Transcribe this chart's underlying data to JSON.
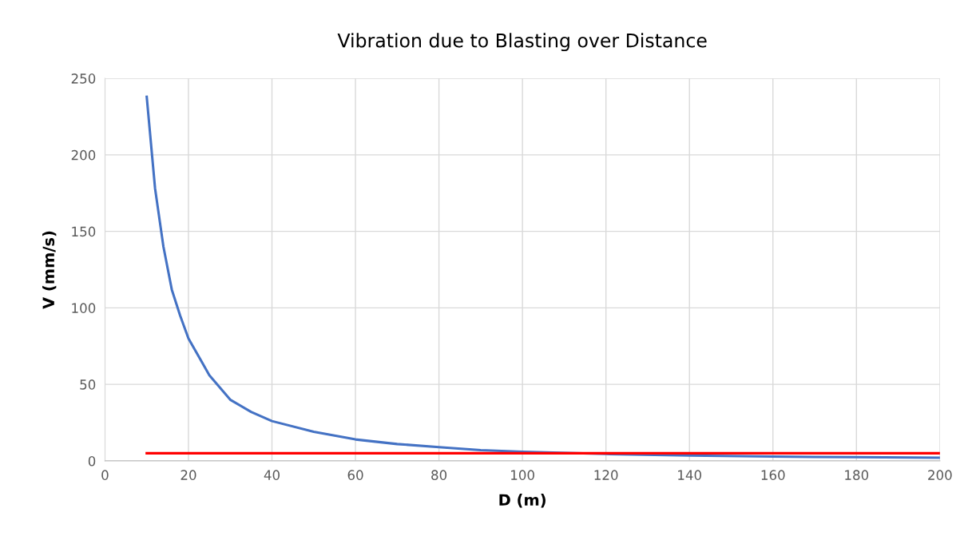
{
  "chart_data": {
    "type": "line",
    "title": "Vibration due to Blasting over Distance",
    "xlabel": "D (m)",
    "ylabel": "V (mm/s)",
    "series": [
      {
        "color": "#4472c4",
        "x": [
          10,
          12,
          14,
          16,
          18,
          20,
          25,
          30,
          35,
          40,
          50,
          60,
          70,
          80,
          90,
          100,
          120,
          140,
          160,
          180,
          200
        ],
        "values": [
          238,
          178,
          140,
          112,
          95,
          80,
          56,
          40,
          32,
          26,
          19,
          14,
          11,
          9,
          7,
          6,
          4.5,
          3.5,
          2.8,
          2.4,
          2
        ]
      },
      {
        "color": "#ff0000",
        "x": [
          10,
          200
        ],
        "values": [
          5,
          5
        ]
      }
    ],
    "xlim": [
      0,
      200
    ],
    "xticks": [
      0,
      20,
      40,
      60,
      80,
      100,
      120,
      140,
      160,
      180,
      200
    ],
    "ylim": [
      0,
      250
    ],
    "yticks": [
      0,
      50,
      100,
      150,
      200,
      250
    ],
    "grid": true,
    "marker": "none",
    "line_style": "solid"
  }
}
